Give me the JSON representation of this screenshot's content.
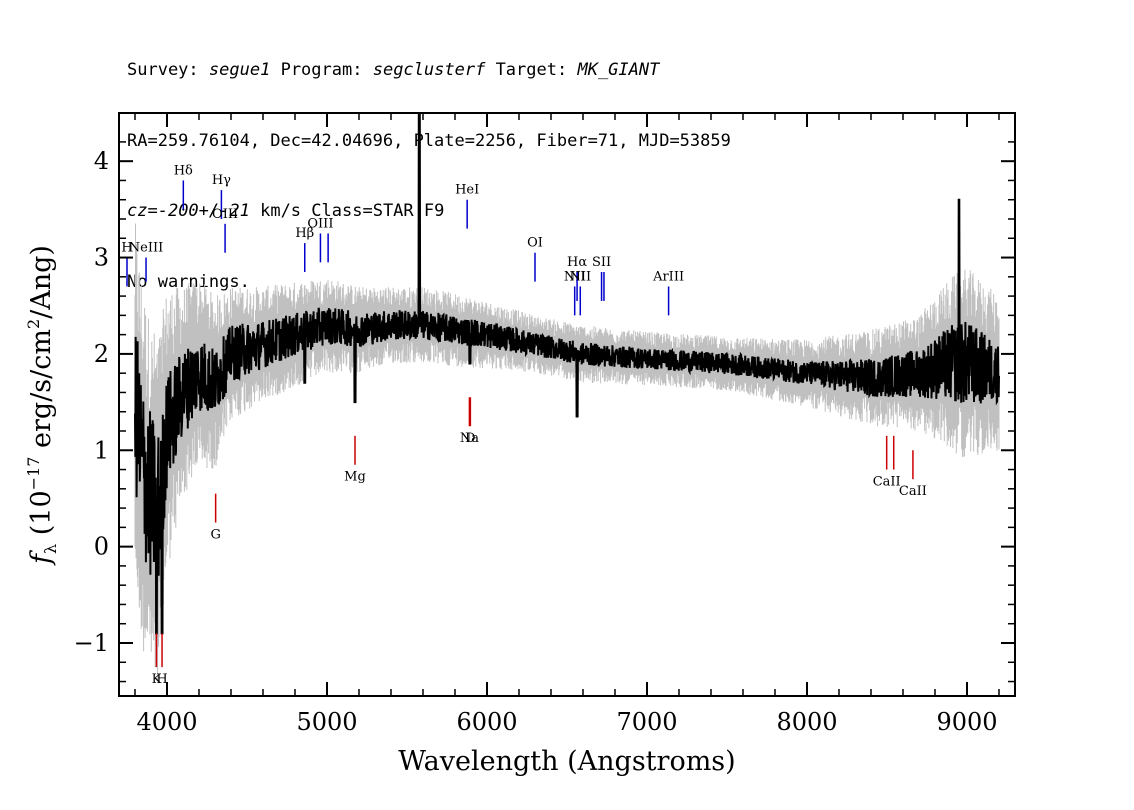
{
  "header": {
    "survey_label": "Survey:",
    "survey_value": "segue1",
    "program_label": "Program:",
    "program_value": "segclusterf",
    "target_label": "Target:",
    "target_value": "MK_GIANT",
    "coords": "RA=259.76104, Dec=42.04696, Plate=2256, Fiber=71, MJD=53859",
    "cz_label": "cz=",
    "cz_value": "-200+/-21",
    "cz_units": "km/s",
    "class_text": "Class=STAR F9",
    "warnings": "No warnings."
  },
  "chart_data": {
    "type": "line",
    "xlabel": "Wavelength (Angstroms)",
    "ylabel": "f_λ (10^-17 erg/s/cm^2/Ang)",
    "xlim": [
      3700,
      9300
    ],
    "ylim": [
      -1.55,
      4.5
    ],
    "x_ticks": [
      4000,
      5000,
      6000,
      7000,
      8000,
      9000
    ],
    "y_ticks": [
      -1,
      0,
      1,
      2,
      3,
      4
    ],
    "grid": false,
    "series": [
      {
        "color": "#c0c0c0",
        "x": [
          3800,
          3850,
          3900,
          3950,
          4000,
          4100,
          4200,
          4300,
          4400,
          4600,
          4800,
          5000,
          5200,
          5400,
          5600,
          5800,
          6000,
          6300,
          6600,
          7000,
          7500,
          8000,
          8400,
          8700,
          8900,
          9000,
          9200
        ],
        "y": [
          1.5,
          0.8,
          0.5,
          0.4,
          1.2,
          1.6,
          1.8,
          1.7,
          2.0,
          2.1,
          2.2,
          2.3,
          2.25,
          2.3,
          2.3,
          2.25,
          2.2,
          2.1,
          2.0,
          1.95,
          1.9,
          1.8,
          1.75,
          1.8,
          1.9,
          1.9,
          1.8
        ],
        "scatter_half_width": [
          1.9,
          1.9,
          1.8,
          1.8,
          1.5,
          1.1,
          1.0,
          0.9,
          0.7,
          0.6,
          0.55,
          0.5,
          0.45,
          0.4,
          0.4,
          0.38,
          0.35,
          0.3,
          0.3,
          0.28,
          0.28,
          0.35,
          0.5,
          0.6,
          0.9,
          1.0,
          0.8
        ]
      },
      {
        "color": "#000000",
        "x": [
          3800,
          3850,
          3900,
          3950,
          4000,
          4100,
          4200,
          4300,
          4400,
          4600,
          4800,
          5000,
          5200,
          5400,
          5600,
          5800,
          6000,
          6300,
          6600,
          7000,
          7500,
          8000,
          8400,
          8700,
          8900,
          9000,
          9200
        ],
        "y": [
          1.5,
          0.8,
          0.5,
          0.4,
          1.2,
          1.6,
          1.8,
          1.7,
          2.0,
          2.1,
          2.2,
          2.3,
          2.25,
          2.3,
          2.3,
          2.25,
          2.2,
          2.1,
          2.0,
          1.95,
          1.9,
          1.8,
          1.75,
          1.8,
          1.9,
          1.9,
          1.8
        ],
        "noise_half_width": [
          0.9,
          0.9,
          0.9,
          0.8,
          0.6,
          0.45,
          0.4,
          0.35,
          0.3,
          0.25,
          0.22,
          0.2,
          0.18,
          0.16,
          0.15,
          0.15,
          0.14,
          0.12,
          0.12,
          0.11,
          0.11,
          0.12,
          0.2,
          0.25,
          0.4,
          0.45,
          0.3
        ],
        "features": [
          {
            "x": 3934,
            "y": -0.9
          },
          {
            "x": 3969,
            "y": -0.9
          },
          {
            "x": 4861,
            "y": 1.7
          },
          {
            "x": 5175,
            "y": 1.5
          },
          {
            "x": 5577,
            "y": 4.5
          },
          {
            "x": 5893,
            "y": 1.9
          },
          {
            "x": 6563,
            "y": 1.35
          },
          {
            "x": 8950,
            "y": 3.6
          }
        ]
      }
    ],
    "line_labels": [
      {
        "text": "H",
        "x": 3750,
        "y_line": [
          2.7,
          3.0
        ],
        "color": "#0000cc",
        "pos": "above"
      },
      {
        "text": "NeIII",
        "x": 3869,
        "y_line": [
          2.75,
          3.0
        ],
        "color": "#0000cc",
        "pos": "above"
      },
      {
        "text": "Hδ",
        "x": 4102,
        "y_line": [
          3.5,
          3.8
        ],
        "color": "#0000cc",
        "pos": "above"
      },
      {
        "text": "Hγ",
        "x": 4340,
        "y_line": [
          3.4,
          3.7
        ],
        "color": "#0000cc",
        "pos": "above"
      },
      {
        "text": "OIII",
        "x": 4363,
        "y_line": [
          3.05,
          3.35
        ],
        "color": "#0000cc",
        "pos": "above"
      },
      {
        "text": "Hβ",
        "x": 4861,
        "y_line": [
          2.85,
          3.15
        ],
        "color": "#0000cc",
        "pos": "above"
      },
      {
        "text": "OIII",
        "x": 4959,
        "y_line": [
          2.95,
          3.25
        ],
        "color": "#0000cc",
        "pos": "above"
      },
      {
        "text": "OIII",
        "x": 5007,
        "y_line": [
          2.95,
          3.25
        ],
        "color": "#0000cc",
        "pos": "above"
      },
      {
        "text": "HeI",
        "x": 5876,
        "y_line": [
          3.3,
          3.6
        ],
        "color": "#0000cc",
        "pos": "above"
      },
      {
        "text": "OI",
        "x": 6300,
        "y_line": [
          2.75,
          3.05
        ],
        "color": "#0000cc",
        "pos": "above"
      },
      {
        "text": "NII",
        "x": 6548,
        "y_line": [
          2.4,
          2.7
        ],
        "color": "#0000cc",
        "pos": "above"
      },
      {
        "text": "Hα",
        "x": 6563,
        "y_line": [
          2.55,
          2.85
        ],
        "color": "#0000cc",
        "pos": "above"
      },
      {
        "text": "NII",
        "x": 6583,
        "y_line": [
          2.4,
          2.7
        ],
        "color": "#0000cc",
        "pos": "above"
      },
      {
        "text": "SII",
        "x": 6716,
        "y_line": [
          2.55,
          2.85
        ],
        "color": "#0000cc",
        "pos": "above"
      },
      {
        "text": "SII",
        "x": 6731,
        "y_line": [
          2.55,
          2.85
        ],
        "color": "#0000cc",
        "pos": "above"
      },
      {
        "text": "ArIII",
        "x": 7135,
        "y_line": [
          2.4,
          2.7
        ],
        "color": "#0000cc",
        "pos": "above"
      },
      {
        "text": "K",
        "x": 3934,
        "y_line": [
          -1.25,
          -0.9
        ],
        "color": "#cc0000",
        "pos": "below"
      },
      {
        "text": "H",
        "x": 3969,
        "y_line": [
          -1.25,
          -0.9
        ],
        "color": "#cc0000",
        "pos": "below"
      },
      {
        "text": "G",
        "x": 4304,
        "y_line": [
          0.25,
          0.55
        ],
        "color": "#cc0000",
        "pos": "below"
      },
      {
        "text": "Mg",
        "x": 5175,
        "y_line": [
          0.85,
          1.15
        ],
        "color": "#cc0000",
        "pos": "below"
      },
      {
        "text": "Na",
        "x": 5890,
        "y_line": [
          1.25,
          1.55
        ],
        "color": "#cc0000",
        "pos": "below"
      },
      {
        "text": "D",
        "x": 5896,
        "y_line": [
          1.25,
          1.55
        ],
        "color": "#cc0000",
        "pos": "below"
      },
      {
        "text": "CaII",
        "x": 8498,
        "y_line": [
          0.8,
          1.15
        ],
        "color": "#cc0000",
        "pos": "below"
      },
      {
        "text": "CaII",
        "x": 8542,
        "y_line": [
          0.8,
          1.15
        ],
        "color": "#cc0000",
        "pos": "below"
      },
      {
        "text": "CaII",
        "x": 8662,
        "y_line": [
          0.7,
          1.0
        ],
        "color": "#cc0000",
        "pos": "below"
      }
    ]
  }
}
